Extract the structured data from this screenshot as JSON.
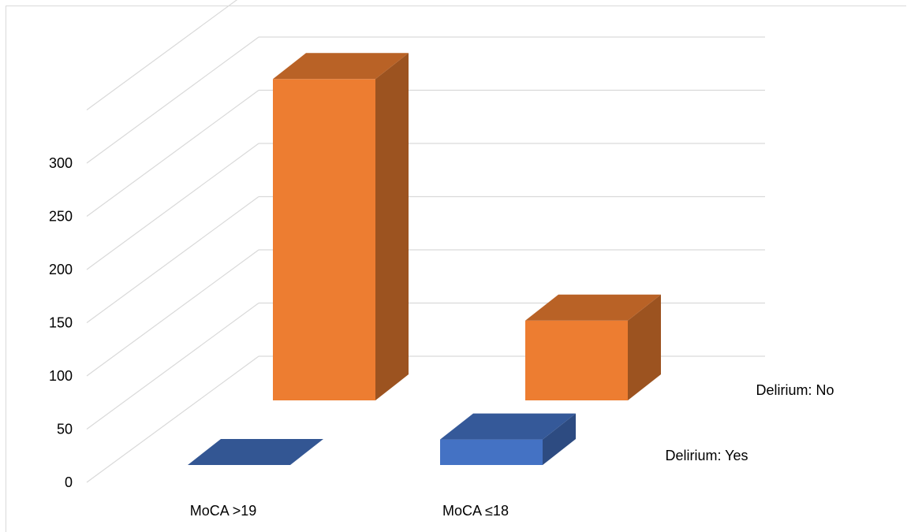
{
  "chart_data": {
    "type": "bar",
    "chart_style": "3d-clustered-depth",
    "title": "",
    "xlabel": "",
    "ylabel": "",
    "categories": [
      "MoCA >19",
      "MoCA ≤18"
    ],
    "series": [
      {
        "name": "Delirium: Yes",
        "values": [
          0,
          24
        ],
        "color": "#4472C4"
      },
      {
        "name": "Delirium: No",
        "values": [
          302,
          75
        ],
        "color": "#ED7D31"
      }
    ],
    "ylim": [
      0,
      300
    ],
    "y_ticks": [
      "0",
      "50",
      "100",
      "150",
      "200",
      "250",
      "300"
    ],
    "grid": true,
    "legend": "none"
  }
}
